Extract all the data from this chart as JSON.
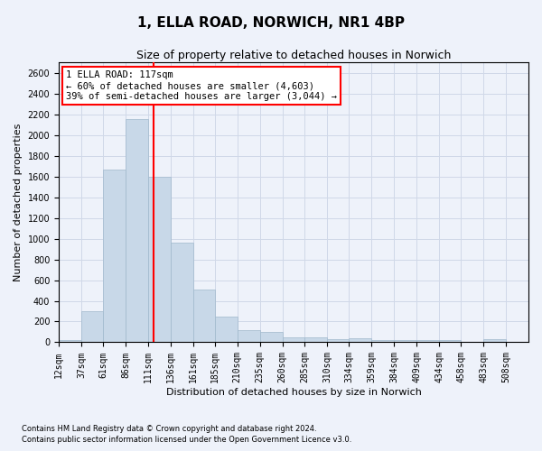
{
  "title": "1, ELLA ROAD, NORWICH, NR1 4BP",
  "subtitle": "Size of property relative to detached houses in Norwich",
  "xlabel": "Distribution of detached houses by size in Norwich",
  "ylabel": "Number of detached properties",
  "footnote1": "Contains HM Land Registry data © Crown copyright and database right 2024.",
  "footnote2": "Contains public sector information licensed under the Open Government Licence v3.0.",
  "property_label": "1 ELLA ROAD: 117sqm",
  "annotation_line1": "← 60% of detached houses are smaller (4,603)",
  "annotation_line2": "39% of semi-detached houses are larger (3,044) →",
  "bar_color": "#c8d8e8",
  "bar_edge_color": "#a0b8cc",
  "vline_color": "red",
  "vline_x": 117,
  "categories": [
    "12sqm",
    "37sqm",
    "61sqm",
    "86sqm",
    "111sqm",
    "136sqm",
    "161sqm",
    "185sqm",
    "210sqm",
    "235sqm",
    "260sqm",
    "285sqm",
    "310sqm",
    "334sqm",
    "359sqm",
    "384sqm",
    "409sqm",
    "434sqm",
    "458sqm",
    "483sqm",
    "508sqm"
  ],
  "bin_edges": [
    12,
    37,
    61,
    86,
    111,
    136,
    161,
    185,
    210,
    235,
    260,
    285,
    310,
    334,
    359,
    384,
    409,
    434,
    458,
    483,
    508,
    533
  ],
  "values": [
    25,
    300,
    1670,
    2150,
    1600,
    960,
    505,
    250,
    120,
    100,
    50,
    50,
    30,
    40,
    20,
    25,
    20,
    25,
    5,
    30,
    5
  ],
  "ylim": [
    0,
    2700
  ],
  "yticks": [
    0,
    200,
    400,
    600,
    800,
    1000,
    1200,
    1400,
    1600,
    1800,
    2000,
    2200,
    2400,
    2600
  ],
  "grid_color": "#d0d8e8",
  "background_color": "#eef2fa",
  "annotation_box_color": "white",
  "annotation_box_edge": "red",
  "title_fontsize": 11,
  "subtitle_fontsize": 9,
  "ylabel_fontsize": 8,
  "xlabel_fontsize": 8,
  "tick_fontsize": 7,
  "annot_fontsize": 7.5,
  "footnote_fontsize": 6
}
